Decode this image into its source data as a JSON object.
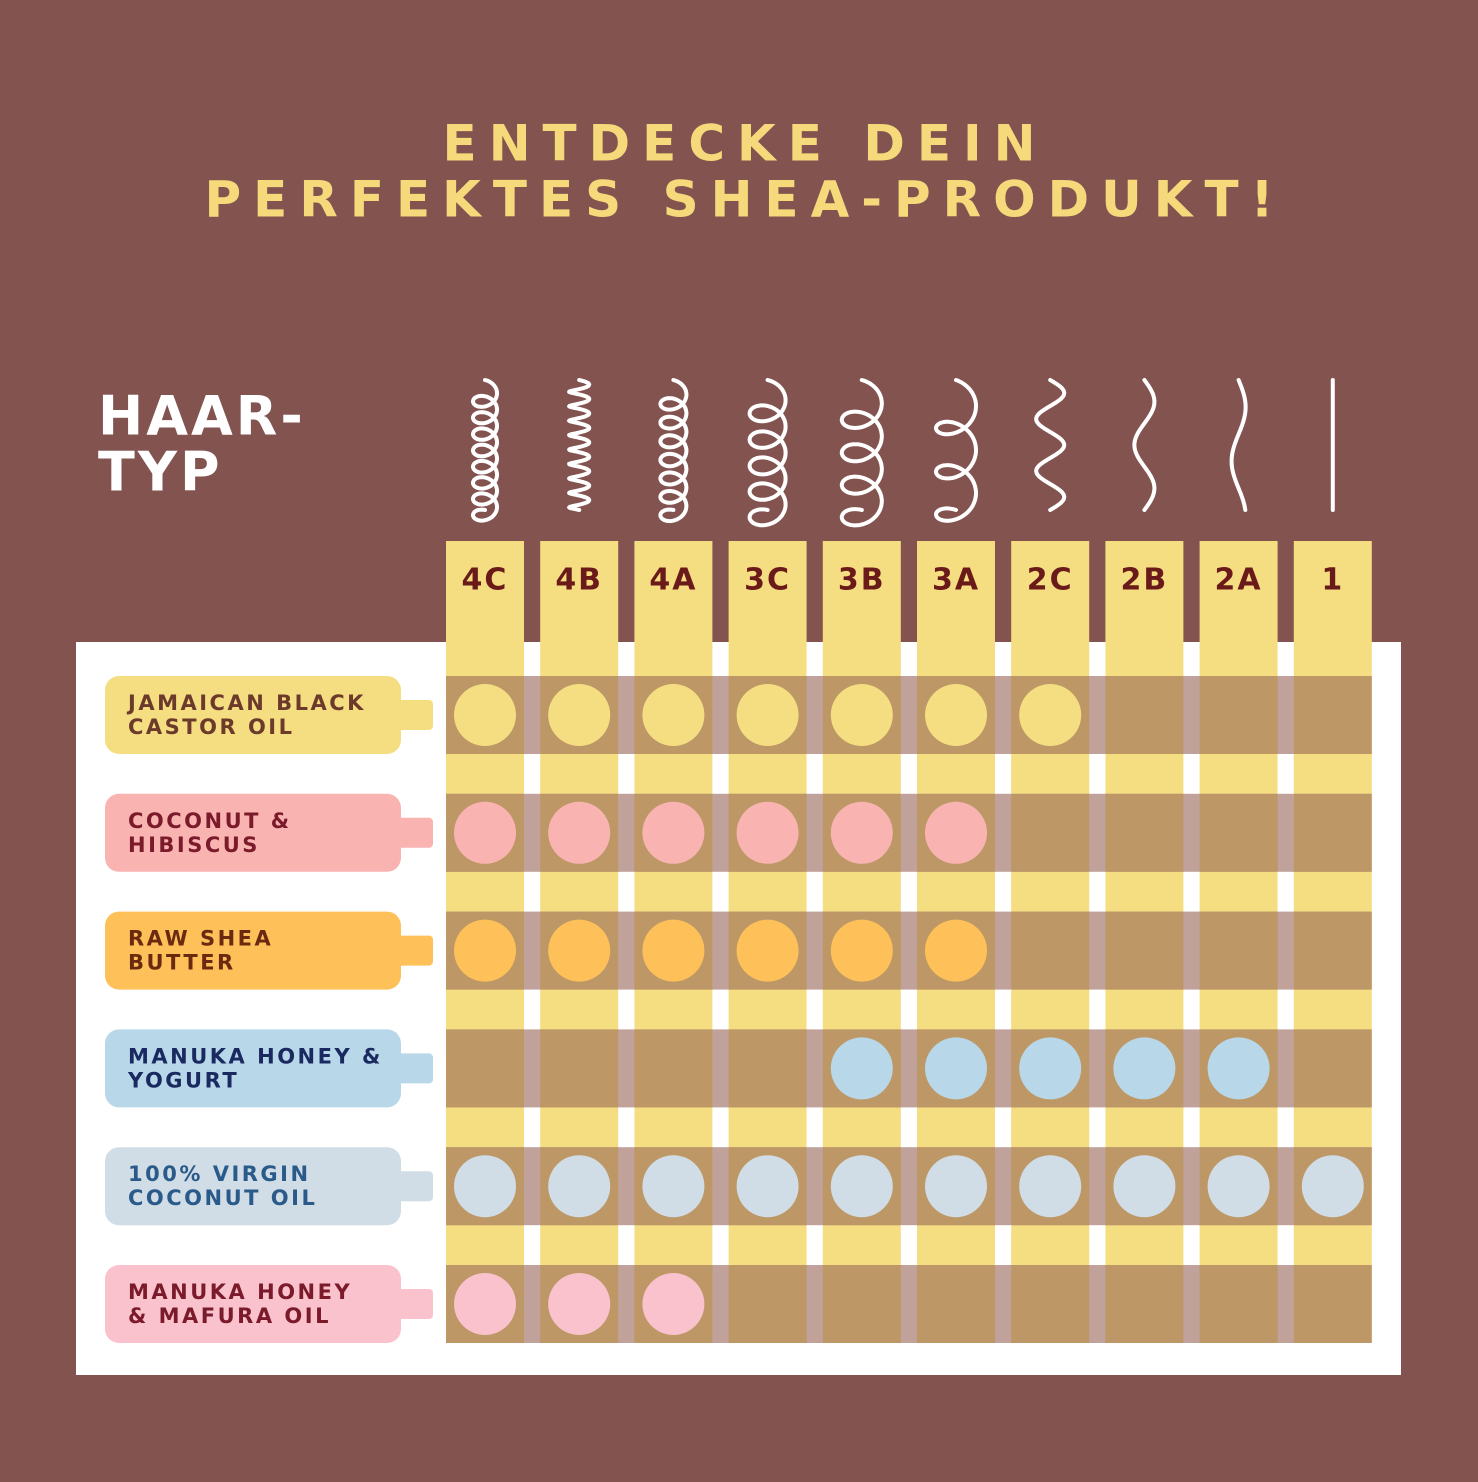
{
  "header": {
    "title_lines": [
      "ENTDECKE DEIN",
      "PERFEKTES SHEA-PRODUKT!"
    ]
  },
  "hair_type_label": [
    "HAAR-",
    "TYP"
  ],
  "columns": [
    "4C",
    "4B",
    "4A",
    "3C",
    "3B",
    "3A",
    "2C",
    "2B",
    "2A",
    "1"
  ],
  "products": [
    {
      "name_lines": [
        "JAMAICAN BLACK",
        "CASTOR OIL"
      ],
      "color": "#f5de82",
      "text_color": "#6b3a2a",
      "suitable": [
        true,
        true,
        true,
        true,
        true,
        true,
        true,
        false,
        false,
        false
      ]
    },
    {
      "name_lines": [
        "COCONUT &",
        "HIBISCUS"
      ],
      "color": "#f9b4b2",
      "text_color": "#7a1a2a",
      "suitable": [
        true,
        true,
        true,
        true,
        true,
        true,
        false,
        false,
        false,
        false
      ]
    },
    {
      "name_lines": [
        "RAW SHEA",
        "BUTTER"
      ],
      "color": "#fec15a",
      "text_color": "#6b2a10",
      "suitable": [
        true,
        true,
        true,
        true,
        true,
        true,
        false,
        false,
        false,
        false
      ]
    },
    {
      "name_lines": [
        "MANUKA HONEY &",
        "YOGURT"
      ],
      "color": "#b8d8ea",
      "text_color": "#1a2a60",
      "suitable": [
        false,
        false,
        false,
        false,
        true,
        true,
        true,
        true,
        true,
        false
      ]
    },
    {
      "name_lines": [
        "100% VIRGIN",
        "COCONUT OIL"
      ],
      "color": "#d0dde6",
      "text_color": "#2a5a8a",
      "suitable": [
        true,
        true,
        true,
        true,
        true,
        true,
        true,
        true,
        true,
        true
      ]
    },
    {
      "name_lines": [
        "MANUKA HONEY",
        "& MAFURA OIL"
      ],
      "color": "#f9c2cc",
      "text_color": "#7a1a2a",
      "suitable": [
        true,
        true,
        true,
        false,
        false,
        false,
        false,
        false,
        false,
        false
      ]
    }
  ]
}
